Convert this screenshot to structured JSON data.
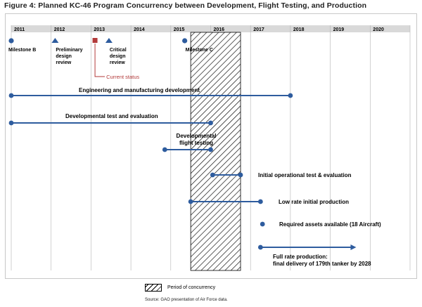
{
  "title": "Figure 4: Planned KC-46 Program Concurrency between Development, Flight Testing, and Production",
  "years": [
    "2011",
    "2012",
    "2013",
    "2014",
    "2015",
    "2016",
    "2017",
    "2018",
    "2019",
    "2020"
  ],
  "milestones": [
    {
      "marker": "circle",
      "year": 2011.0,
      "lines": [
        "Milestone B"
      ],
      "color": "#2e5c9e"
    },
    {
      "marker": "triangle",
      "year": 2012.1,
      "lines": [
        "Preliminary",
        "design",
        "review"
      ],
      "color": "#2e5c9e"
    },
    {
      "marker": "square",
      "year": 2013.1,
      "lines": [],
      "color": "#b23a3a"
    },
    {
      "marker": "triangle",
      "year": 2013.45,
      "lines": [
        "Critical",
        "design",
        "review"
      ],
      "color": "#2e5c9e"
    },
    {
      "marker": "circle",
      "year": 2015.35,
      "lines": [
        "Milestone C"
      ],
      "color": "#2e5c9e"
    }
  ],
  "current_status": {
    "label": "Current status",
    "year": 2013.1
  },
  "concurrency": {
    "start": 2015.5,
    "end": 2016.75
  },
  "activities": [
    {
      "label": "Engineering and manufacturing development",
      "start": 2011.0,
      "end": 2018.0,
      "arrow": false
    },
    {
      "label": "Developmental test and evaluation",
      "start": 2011.0,
      "end": 2016.0,
      "arrow": false
    },
    {
      "label_lines": [
        "Developmental",
        "flight testing"
      ],
      "start": 2014.85,
      "end": 2016.0,
      "arrow": false
    },
    {
      "label": "Initial operational test & evaluation",
      "start": 2016.05,
      "end": 2016.75,
      "arrow": false
    },
    {
      "label": "Low rate initial production",
      "start": 2015.5,
      "end": 2017.25,
      "arrow": false
    },
    {
      "label": "Required assets available (18 Aircraft)",
      "start": 2017.3,
      "end": 2017.3,
      "arrow": false
    },
    {
      "label_lines": [
        "Full rate production:",
        "final delivery of 179th tanker by 2028"
      ],
      "start": 2017.25,
      "end": 2019.65,
      "arrow": true
    }
  ],
  "legend": {
    "label": "Period of concurrency"
  },
  "source": "Source: GAO presentation of Air Force data.",
  "colors": {
    "series": "#2e5c9e",
    "status": "#b23a3a",
    "header": "#d9d9d9",
    "grid": "#b3b3b3"
  }
}
